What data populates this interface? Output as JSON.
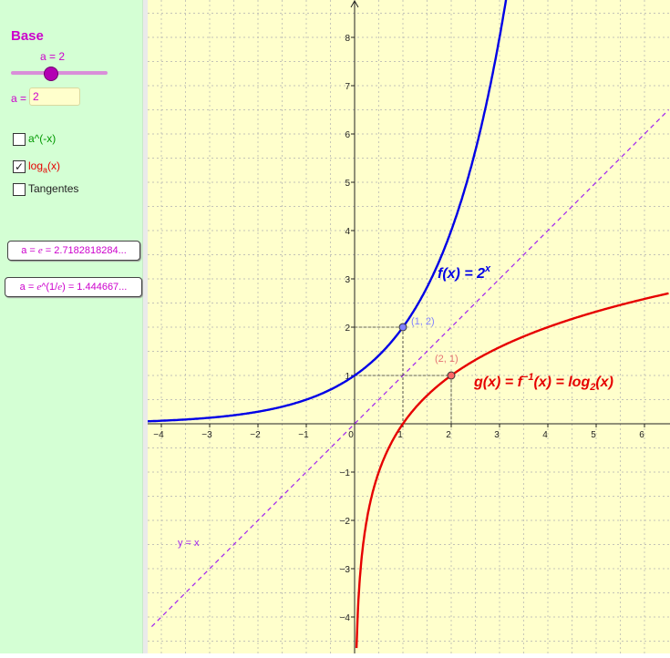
{
  "panel": {
    "title": "Base",
    "slider_label": "a = 2",
    "a_label": "a =",
    "a_value": "2",
    "checkboxes": [
      {
        "label": "a^(-x)",
        "checked": false,
        "color": "#009900"
      },
      {
        "label": "log",
        "sub": "a",
        "suffix": "(x)",
        "checked": true,
        "color": "#e60000"
      },
      {
        "label": "Tangentes",
        "checked": false,
        "color": "#222222"
      }
    ],
    "button_e": {
      "prefix": "a = ",
      "var": "e",
      "suffix": " = 2.7182818284..."
    },
    "button_e1e": {
      "prefix": "a = ",
      "var": "e",
      "mid": "^(1/",
      "var2": "e",
      "suffix": ") = 1.444667..."
    }
  },
  "graph": {
    "x_ticks": [
      "−4",
      "−3",
      "−2",
      "−1",
      "0",
      "1",
      "2",
      "3",
      "4",
      "5",
      "6"
    ],
    "y_ticks": [
      "8",
      "7",
      "6",
      "5",
      "4",
      "3",
      "2",
      "1",
      "−1",
      "−2",
      "−3",
      "−4"
    ],
    "point_f_label": "(1, 2)",
    "point_g_label": "(2, 1)",
    "f_label": {
      "name": "f(x) = 2",
      "exp": "x"
    },
    "g_label": {
      "name": "g(x) = f",
      "sup": "−1",
      "mid": "(x) = log",
      "sub": "2",
      "end": "(x)"
    },
    "line_label": "y = x",
    "colors": {
      "f": "#0000e6",
      "g": "#e60000",
      "identity": "#a020f0",
      "background": "#ffffcc",
      "grid": "#b0b0b0"
    }
  }
}
